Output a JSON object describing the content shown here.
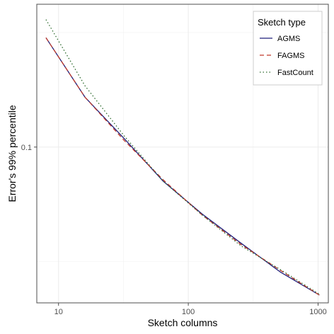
{
  "chart_data": {
    "type": "line",
    "title": "",
    "xlabel": "Sketch columns",
    "ylabel": "Error's 99% percentile",
    "x_scale": "log10",
    "y_scale": "log10",
    "xlim": [
      6.8,
      1200
    ],
    "ylim": [
      0.0209,
      0.42
    ],
    "x_ticks": [
      10,
      100,
      1000
    ],
    "x_tick_labels": [
      "10",
      "100",
      "1000"
    ],
    "y_ticks": [
      0.1
    ],
    "y_tick_labels": [
      "0.1"
    ],
    "grid": true,
    "legend": {
      "title": "Sketch type",
      "position": "top-right"
    },
    "x": [
      8,
      16,
      32,
      64,
      128,
      256,
      512,
      1024
    ],
    "series": [
      {
        "name": "AGMS",
        "color": "#1f1f7a",
        "dash": "solid",
        "values": [
          0.3,
          0.165,
          0.109,
          0.071,
          0.051,
          0.038,
          0.0285,
          0.0226
        ]
      },
      {
        "name": "FAGMS",
        "color": "#c0392b",
        "dash": "dashed",
        "values": [
          0.3,
          0.165,
          0.107,
          0.072,
          0.0505,
          0.0375,
          0.029,
          0.0226
        ]
      },
      {
        "name": "FastCount",
        "color": "#2e6b2e",
        "dash": "dotted",
        "values": [
          0.36,
          0.185,
          0.112,
          0.071,
          0.0505,
          0.037,
          0.0292,
          0.0228
        ]
      }
    ]
  }
}
